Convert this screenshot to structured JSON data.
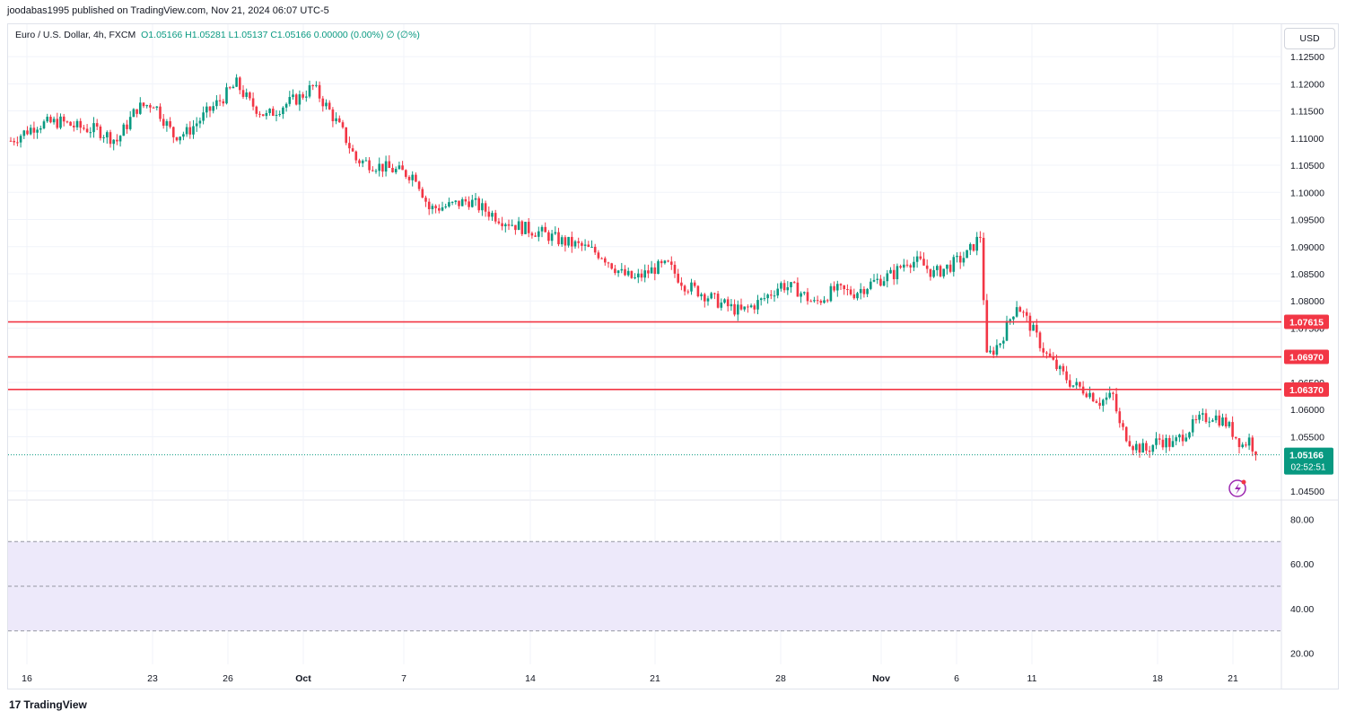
{
  "header": {
    "published_by": "joodabas1995 published on TradingView.com, Nov 21, 2024 06:07 UTC-5"
  },
  "legend": {
    "symbol": "Euro / U.S. Dollar, 4h, FXCM",
    "ohlc": "O1.05166  H1.05281  L1.05137  C1.05166  0.00000 (0.00%)  ∅ (∅%)"
  },
  "currency_button": "USD",
  "footer": {
    "brand": "TradingView",
    "logo_glyph": "17"
  },
  "colors": {
    "up": "#089981",
    "down": "#f23645",
    "level": "#f23645",
    "rsi_band": "#ede9fa",
    "grid": "#f0f3fa"
  },
  "chart_data": {
    "type": "candlestick",
    "symbol": "EURUSD",
    "timeframe": "4h",
    "price_axis": {
      "ylim": [
        1.0435,
        1.1265
      ],
      "ticks": [
        "1.04500",
        "1.05500",
        "1.06000",
        "1.06500",
        "1.07500",
        "1.08000",
        "1.08500",
        "1.09000",
        "1.09500",
        "1.10000",
        "1.10500",
        "1.11000",
        "1.11500",
        "1.12000",
        "1.12500"
      ]
    },
    "x_ticks": [
      "16",
      "23",
      "26",
      "Oct",
      "7",
      "14",
      "21",
      "28",
      "Nov",
      "6",
      "11",
      "18",
      "21"
    ],
    "horizontal_levels": [
      1.07615,
      1.0697,
      1.0637
    ],
    "horizontal_level_labels": [
      "1.07615",
      "1.06970",
      "1.06370"
    ],
    "last_price": 1.05166,
    "last_price_label": "1.05166",
    "countdown": "02:52:51",
    "price_path": [
      [
        0,
        1.1095
      ],
      [
        8,
        1.1125
      ],
      [
        15,
        1.113
      ],
      [
        20,
        1.112
      ],
      [
        26,
        1.1115
      ],
      [
        32,
        1.1095
      ],
      [
        38,
        1.1155
      ],
      [
        43,
        1.1165
      ],
      [
        49,
        1.1105
      ],
      [
        53,
        1.111
      ],
      [
        58,
        1.114
      ],
      [
        64,
        1.1175
      ],
      [
        68,
        1.12
      ],
      [
        72,
        1.1165
      ],
      [
        77,
        1.114
      ],
      [
        82,
        1.116
      ],
      [
        87,
        1.1175
      ],
      [
        91,
        1.1195
      ],
      [
        96,
        1.115
      ],
      [
        100,
        1.111
      ],
      [
        104,
        1.106
      ],
      [
        110,
        1.105
      ],
      [
        116,
        1.104
      ],
      [
        122,
        1.103
      ],
      [
        126,
        1.097
      ],
      [
        132,
        1.0975
      ],
      [
        138,
        1.0985
      ],
      [
        142,
        1.097
      ],
      [
        148,
        1.095
      ],
      [
        154,
        1.0935
      ],
      [
        160,
        1.0925
      ],
      [
        166,
        1.091
      ],
      [
        172,
        1.09
      ],
      [
        178,
        1.0885
      ],
      [
        184,
        1.085
      ],
      [
        188,
        1.084
      ],
      [
        194,
        1.086
      ],
      [
        198,
        1.0865
      ],
      [
        203,
        1.083
      ],
      [
        208,
        1.0815
      ],
      [
        214,
        1.0795
      ],
      [
        220,
        1.078
      ],
      [
        226,
        1.08
      ],
      [
        232,
        1.083
      ],
      [
        237,
        1.082
      ],
      [
        242,
        1.0795
      ],
      [
        248,
        1.082
      ],
      [
        254,
        1.0815
      ],
      [
        260,
        1.0835
      ],
      [
        266,
        1.085
      ],
      [
        270,
        1.0875
      ],
      [
        274,
        1.087
      ],
      [
        278,
        1.085
      ],
      [
        283,
        1.0865
      ],
      [
        288,
        1.0885
      ],
      [
        292,
        1.092
      ],
      [
        294,
        1.0695
      ],
      [
        298,
        1.0725
      ],
      [
        303,
        1.0795
      ],
      [
        307,
        1.0755
      ],
      [
        312,
        1.07
      ],
      [
        316,
        1.067
      ],
      [
        320,
        1.0645
      ],
      [
        324,
        1.0635
      ],
      [
        328,
        1.0615
      ],
      [
        332,
        1.0625
      ],
      [
        334,
        1.057
      ],
      [
        338,
        1.0535
      ],
      [
        342,
        1.0525
      ],
      [
        346,
        1.0545
      ],
      [
        350,
        1.0535
      ],
      [
        354,
        1.056
      ],
      [
        358,
        1.058
      ],
      [
        362,
        1.059
      ],
      [
        366,
        1.0575
      ],
      [
        369,
        1.055
      ],
      [
        371,
        1.0535
      ],
      [
        373,
        1.0545
      ],
      [
        375,
        1.052
      ]
    ],
    "last_index": 375,
    "rsi_panel": {
      "ylim": [
        15,
        85
      ],
      "ticks": [
        "80.00",
        "60.00",
        "40.00",
        "20.00"
      ],
      "band": [
        30,
        70
      ],
      "midline": 50
    }
  },
  "icons": {
    "flash": "flash-icon"
  }
}
